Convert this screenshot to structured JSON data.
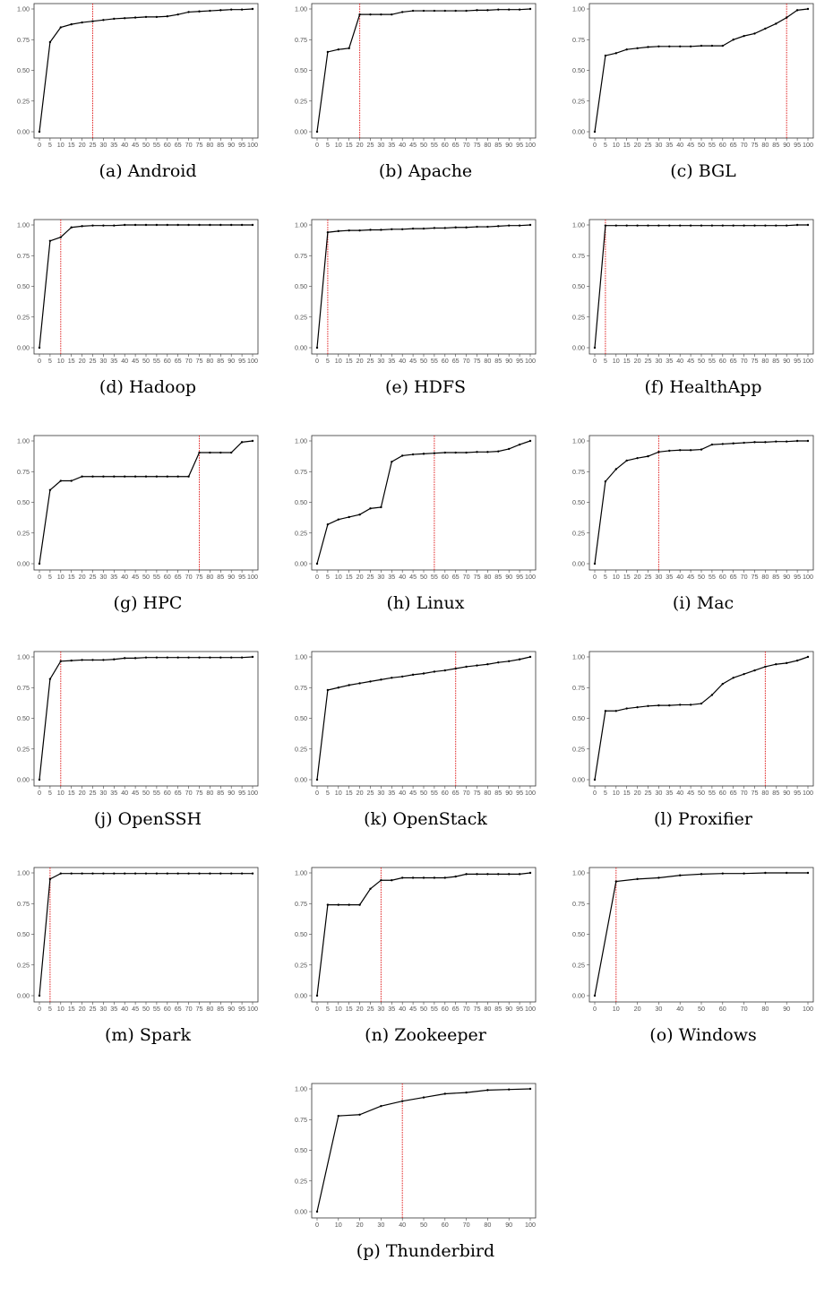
{
  "chart_data": [
    {
      "type": "line",
      "caption": "(a) Android",
      "x": [
        0,
        5,
        10,
        15,
        20,
        25,
        30,
        35,
        40,
        45,
        50,
        55,
        60,
        65,
        70,
        75,
        80,
        85,
        90,
        95,
        100
      ],
      "values": [
        0.0,
        0.73,
        0.85,
        0.875,
        0.89,
        0.9,
        0.91,
        0.92,
        0.925,
        0.93,
        0.935,
        0.935,
        0.94,
        0.955,
        0.975,
        0.98,
        0.985,
        0.99,
        0.995,
        0.995,
        1.0
      ],
      "vline": 25,
      "yticks": [
        "0.00",
        "0.25",
        "0.50",
        "0.75",
        "1.00"
      ],
      "xticks": [
        "0",
        "5",
        "10",
        "15",
        "20",
        "25",
        "30",
        "35",
        "40",
        "45",
        "50",
        "55",
        "60",
        "65",
        "70",
        "75",
        "80",
        "85",
        "90",
        "95",
        "100"
      ]
    },
    {
      "type": "line",
      "caption": "(b) Apache",
      "x": [
        0,
        5,
        10,
        15,
        20,
        25,
        30,
        35,
        40,
        45,
        50,
        55,
        60,
        65,
        70,
        75,
        80,
        85,
        90,
        95,
        100
      ],
      "values": [
        0.0,
        0.65,
        0.67,
        0.68,
        0.955,
        0.955,
        0.955,
        0.955,
        0.975,
        0.985,
        0.985,
        0.985,
        0.985,
        0.985,
        0.985,
        0.99,
        0.99,
        0.995,
        0.995,
        0.995,
        1.0
      ],
      "vline": 20,
      "yticks": [
        "0.00",
        "0.25",
        "0.50",
        "0.75",
        "1.00"
      ],
      "xticks": [
        "0",
        "5",
        "10",
        "15",
        "20",
        "25",
        "30",
        "35",
        "40",
        "45",
        "50",
        "55",
        "60",
        "65",
        "70",
        "75",
        "80",
        "85",
        "90",
        "95",
        "100"
      ]
    },
    {
      "type": "line",
      "caption": "(c) BGL",
      "x": [
        0,
        5,
        10,
        15,
        20,
        25,
        30,
        35,
        40,
        45,
        50,
        55,
        60,
        65,
        70,
        75,
        80,
        85,
        90,
        95,
        100
      ],
      "values": [
        0.0,
        0.62,
        0.64,
        0.67,
        0.68,
        0.69,
        0.695,
        0.695,
        0.695,
        0.695,
        0.7,
        0.7,
        0.7,
        0.75,
        0.78,
        0.8,
        0.84,
        0.88,
        0.93,
        0.99,
        1.0
      ],
      "vline": 90,
      "yticks": [
        "0.00",
        "0.25",
        "0.50",
        "0.75",
        "1.00"
      ],
      "xticks": [
        "0",
        "5",
        "10",
        "15",
        "20",
        "25",
        "30",
        "35",
        "40",
        "45",
        "50",
        "55",
        "60",
        "65",
        "70",
        "75",
        "80",
        "85",
        "90",
        "95",
        "100"
      ]
    },
    {
      "type": "line",
      "caption": "(d) Hadoop",
      "x": [
        0,
        5,
        10,
        15,
        20,
        25,
        30,
        35,
        40,
        45,
        50,
        55,
        60,
        65,
        70,
        75,
        80,
        85,
        90,
        95,
        100
      ],
      "values": [
        0.0,
        0.87,
        0.9,
        0.98,
        0.99,
        0.995,
        0.995,
        0.995,
        1.0,
        1.0,
        1.0,
        1.0,
        1.0,
        1.0,
        1.0,
        1.0,
        1.0,
        1.0,
        1.0,
        1.0,
        1.0
      ],
      "vline": 10,
      "yticks": [
        "0.00",
        "0.25",
        "0.50",
        "0.75",
        "1.00"
      ],
      "xticks": [
        "0",
        "5",
        "10",
        "15",
        "20",
        "25",
        "30",
        "35",
        "40",
        "45",
        "50",
        "55",
        "60",
        "65",
        "70",
        "75",
        "80",
        "85",
        "90",
        "95",
        "100"
      ]
    },
    {
      "type": "line",
      "caption": "(e) HDFS",
      "x": [
        0,
        5,
        10,
        15,
        20,
        25,
        30,
        35,
        40,
        45,
        50,
        55,
        60,
        65,
        70,
        75,
        80,
        85,
        90,
        95,
        100
      ],
      "values": [
        0.0,
        0.94,
        0.95,
        0.955,
        0.955,
        0.96,
        0.96,
        0.965,
        0.965,
        0.97,
        0.97,
        0.975,
        0.975,
        0.98,
        0.98,
        0.985,
        0.985,
        0.99,
        0.995,
        0.995,
        1.0
      ],
      "vline": 5,
      "yticks": [
        "0.00",
        "0.25",
        "0.50",
        "0.75",
        "1.00"
      ],
      "xticks": [
        "0",
        "5",
        "10",
        "15",
        "20",
        "25",
        "30",
        "35",
        "40",
        "45",
        "50",
        "55",
        "60",
        "65",
        "70",
        "75",
        "80",
        "85",
        "90",
        "95",
        "100"
      ]
    },
    {
      "type": "line",
      "caption": "(f) HealthApp",
      "x": [
        0,
        5,
        10,
        15,
        20,
        25,
        30,
        35,
        40,
        45,
        50,
        55,
        60,
        65,
        70,
        75,
        80,
        85,
        90,
        95,
        100
      ],
      "values": [
        0.0,
        0.995,
        0.995,
        0.995,
        0.995,
        0.995,
        0.995,
        0.995,
        0.995,
        0.995,
        0.995,
        0.995,
        0.995,
        0.995,
        0.995,
        0.995,
        0.995,
        0.995,
        0.995,
        1.0,
        1.0
      ],
      "vline": 5,
      "yticks": [
        "0.00",
        "0.25",
        "0.50",
        "0.75",
        "1.00"
      ],
      "xticks": [
        "0",
        "5",
        "10",
        "15",
        "20",
        "25",
        "30",
        "35",
        "40",
        "45",
        "50",
        "55",
        "60",
        "65",
        "70",
        "75",
        "80",
        "85",
        "90",
        "95",
        "100"
      ]
    },
    {
      "type": "line",
      "caption": "(g) HPC",
      "x": [
        0,
        5,
        10,
        15,
        20,
        25,
        30,
        35,
        40,
        45,
        50,
        55,
        60,
        65,
        70,
        75,
        80,
        85,
        90,
        95,
        100
      ],
      "values": [
        0.0,
        0.6,
        0.675,
        0.675,
        0.71,
        0.71,
        0.71,
        0.71,
        0.71,
        0.71,
        0.71,
        0.71,
        0.71,
        0.71,
        0.71,
        0.905,
        0.905,
        0.905,
        0.905,
        0.99,
        1.0
      ],
      "vline": 75,
      "yticks": [
        "0.00",
        "0.25",
        "0.50",
        "0.75",
        "1.00"
      ],
      "xticks": [
        "0",
        "5",
        "10",
        "15",
        "20",
        "25",
        "30",
        "35",
        "40",
        "45",
        "50",
        "55",
        "60",
        "65",
        "70",
        "75",
        "80",
        "85",
        "90",
        "95",
        "100"
      ]
    },
    {
      "type": "line",
      "caption": "(h) Linux",
      "x": [
        0,
        5,
        10,
        15,
        20,
        25,
        30,
        35,
        40,
        45,
        50,
        55,
        60,
        65,
        70,
        75,
        80,
        85,
        90,
        95,
        100
      ],
      "values": [
        0.0,
        0.32,
        0.36,
        0.38,
        0.4,
        0.45,
        0.46,
        0.83,
        0.88,
        0.89,
        0.895,
        0.9,
        0.905,
        0.905,
        0.905,
        0.91,
        0.91,
        0.915,
        0.935,
        0.97,
        1.0
      ],
      "vline": 55,
      "yticks": [
        "0.00",
        "0.25",
        "0.50",
        "0.75",
        "1.00"
      ],
      "xticks": [
        "0",
        "5",
        "10",
        "15",
        "20",
        "25",
        "30",
        "35",
        "40",
        "45",
        "50",
        "55",
        "60",
        "65",
        "70",
        "75",
        "80",
        "85",
        "90",
        "95",
        "100"
      ]
    },
    {
      "type": "line",
      "caption": "(i) Mac",
      "x": [
        0,
        5,
        10,
        15,
        20,
        25,
        30,
        35,
        40,
        45,
        50,
        55,
        60,
        65,
        70,
        75,
        80,
        85,
        90,
        95,
        100
      ],
      "values": [
        0.0,
        0.67,
        0.77,
        0.84,
        0.86,
        0.875,
        0.91,
        0.92,
        0.925,
        0.925,
        0.93,
        0.97,
        0.975,
        0.98,
        0.985,
        0.99,
        0.99,
        0.995,
        0.995,
        1.0,
        1.0
      ],
      "vline": 30,
      "yticks": [
        "0.00",
        "0.25",
        "0.50",
        "0.75",
        "1.00"
      ],
      "xticks": [
        "0",
        "5",
        "10",
        "15",
        "20",
        "25",
        "30",
        "35",
        "40",
        "45",
        "50",
        "55",
        "60",
        "65",
        "70",
        "75",
        "80",
        "85",
        "90",
        "95",
        "100"
      ]
    },
    {
      "type": "line",
      "caption": "(j) OpenSSH",
      "x": [
        0,
        5,
        10,
        15,
        20,
        25,
        30,
        35,
        40,
        45,
        50,
        55,
        60,
        65,
        70,
        75,
        80,
        85,
        90,
        95,
        100
      ],
      "values": [
        0.0,
        0.82,
        0.965,
        0.97,
        0.975,
        0.975,
        0.975,
        0.98,
        0.99,
        0.99,
        0.995,
        0.995,
        0.995,
        0.995,
        0.995,
        0.995,
        0.995,
        0.995,
        0.995,
        0.995,
        1.0
      ],
      "vline": 10,
      "yticks": [
        "0.00",
        "0.25",
        "0.50",
        "0.75",
        "1.00"
      ],
      "xticks": [
        "0",
        "5",
        "10",
        "15",
        "20",
        "25",
        "30",
        "35",
        "40",
        "45",
        "50",
        "55",
        "60",
        "65",
        "70",
        "75",
        "80",
        "85",
        "90",
        "95",
        "100"
      ]
    },
    {
      "type": "line",
      "caption": "(k) OpenStack",
      "x": [
        0,
        5,
        10,
        15,
        20,
        25,
        30,
        35,
        40,
        45,
        50,
        55,
        60,
        65,
        70,
        75,
        80,
        85,
        90,
        95,
        100
      ],
      "values": [
        0.0,
        0.73,
        0.75,
        0.77,
        0.785,
        0.8,
        0.815,
        0.83,
        0.84,
        0.855,
        0.865,
        0.88,
        0.89,
        0.905,
        0.92,
        0.93,
        0.94,
        0.955,
        0.965,
        0.98,
        1.0
      ],
      "vline": 65,
      "yticks": [
        "0.00",
        "0.25",
        "0.50",
        "0.75",
        "1.00"
      ],
      "xticks": [
        "0",
        "5",
        "10",
        "15",
        "20",
        "25",
        "30",
        "35",
        "40",
        "45",
        "50",
        "55",
        "60",
        "65",
        "70",
        "75",
        "80",
        "85",
        "90",
        "95",
        "100"
      ]
    },
    {
      "type": "line",
      "caption": "(l) Proxifier",
      "x": [
        0,
        5,
        10,
        15,
        20,
        25,
        30,
        35,
        40,
        45,
        50,
        55,
        60,
        65,
        70,
        75,
        80,
        85,
        90,
        95,
        100
      ],
      "values": [
        0.0,
        0.56,
        0.56,
        0.58,
        0.59,
        0.6,
        0.605,
        0.605,
        0.61,
        0.61,
        0.62,
        0.69,
        0.78,
        0.83,
        0.86,
        0.89,
        0.92,
        0.94,
        0.95,
        0.97,
        1.0
      ],
      "vline": 80,
      "yticks": [
        "0.00",
        "0.25",
        "0.50",
        "0.75",
        "1.00"
      ],
      "xticks": [
        "0",
        "5",
        "10",
        "15",
        "20",
        "25",
        "30",
        "35",
        "40",
        "45",
        "50",
        "55",
        "60",
        "65",
        "70",
        "75",
        "80",
        "85",
        "90",
        "95",
        "100"
      ]
    },
    {
      "type": "line",
      "caption": "(m) Spark",
      "x": [
        0,
        5,
        10,
        15,
        20,
        25,
        30,
        35,
        40,
        45,
        50,
        55,
        60,
        65,
        70,
        75,
        80,
        85,
        90,
        95,
        100
      ],
      "values": [
        0.0,
        0.95,
        0.995,
        0.995,
        0.995,
        0.995,
        0.995,
        0.995,
        0.995,
        0.995,
        0.995,
        0.995,
        0.995,
        0.995,
        0.995,
        0.995,
        0.995,
        0.995,
        0.995,
        0.995,
        0.995
      ],
      "vline": 5,
      "yticks": [
        "0.00",
        "0.25",
        "0.50",
        "0.75",
        "1.00"
      ],
      "xticks": [
        "0",
        "5",
        "10",
        "15",
        "20",
        "25",
        "30",
        "35",
        "40",
        "45",
        "50",
        "55",
        "60",
        "65",
        "70",
        "75",
        "80",
        "85",
        "90",
        "95",
        "100"
      ]
    },
    {
      "type": "line",
      "caption": "(n) Zookeeper",
      "x": [
        0,
        5,
        10,
        15,
        20,
        25,
        30,
        35,
        40,
        45,
        50,
        55,
        60,
        65,
        70,
        75,
        80,
        85,
        90,
        95,
        100
      ],
      "values": [
        0.0,
        0.74,
        0.74,
        0.74,
        0.74,
        0.87,
        0.94,
        0.94,
        0.96,
        0.96,
        0.96,
        0.96,
        0.96,
        0.97,
        0.99,
        0.99,
        0.99,
        0.99,
        0.99,
        0.99,
        1.0
      ],
      "vline": 30,
      "yticks": [
        "0.00",
        "0.25",
        "0.50",
        "0.75",
        "1.00"
      ],
      "xticks": [
        "0",
        "5",
        "10",
        "15",
        "20",
        "25",
        "30",
        "35",
        "40",
        "45",
        "50",
        "55",
        "60",
        "65",
        "70",
        "75",
        "80",
        "85",
        "90",
        "95",
        "100"
      ]
    },
    {
      "type": "line",
      "caption": "(o) Windows",
      "x": [
        0,
        10,
        20,
        30,
        40,
        50,
        60,
        70,
        80,
        90,
        100
      ],
      "values": [
        0.0,
        0.93,
        0.95,
        0.96,
        0.98,
        0.99,
        0.995,
        0.995,
        1.0,
        1.0,
        1.0
      ],
      "vline": 10,
      "yticks": [
        "0.00",
        "0.25",
        "0.50",
        "0.75",
        "1.00"
      ],
      "xticks": [
        "0",
        "10",
        "20",
        "30",
        "40",
        "50",
        "60",
        "70",
        "80",
        "90",
        "100"
      ]
    },
    {
      "type": "line",
      "caption": "(p) Thunderbird",
      "x": [
        0,
        10,
        20,
        30,
        40,
        50,
        60,
        70,
        80,
        90,
        100
      ],
      "values": [
        0.0,
        0.78,
        0.79,
        0.86,
        0.9,
        0.93,
        0.96,
        0.97,
        0.99,
        0.995,
        1.0
      ],
      "vline": 40,
      "yticks": [
        "0.00",
        "0.25",
        "0.50",
        "0.75",
        "1.00"
      ],
      "xticks": [
        "0",
        "10",
        "20",
        "30",
        "40",
        "50",
        "60",
        "70",
        "80",
        "90",
        "100"
      ]
    }
  ]
}
